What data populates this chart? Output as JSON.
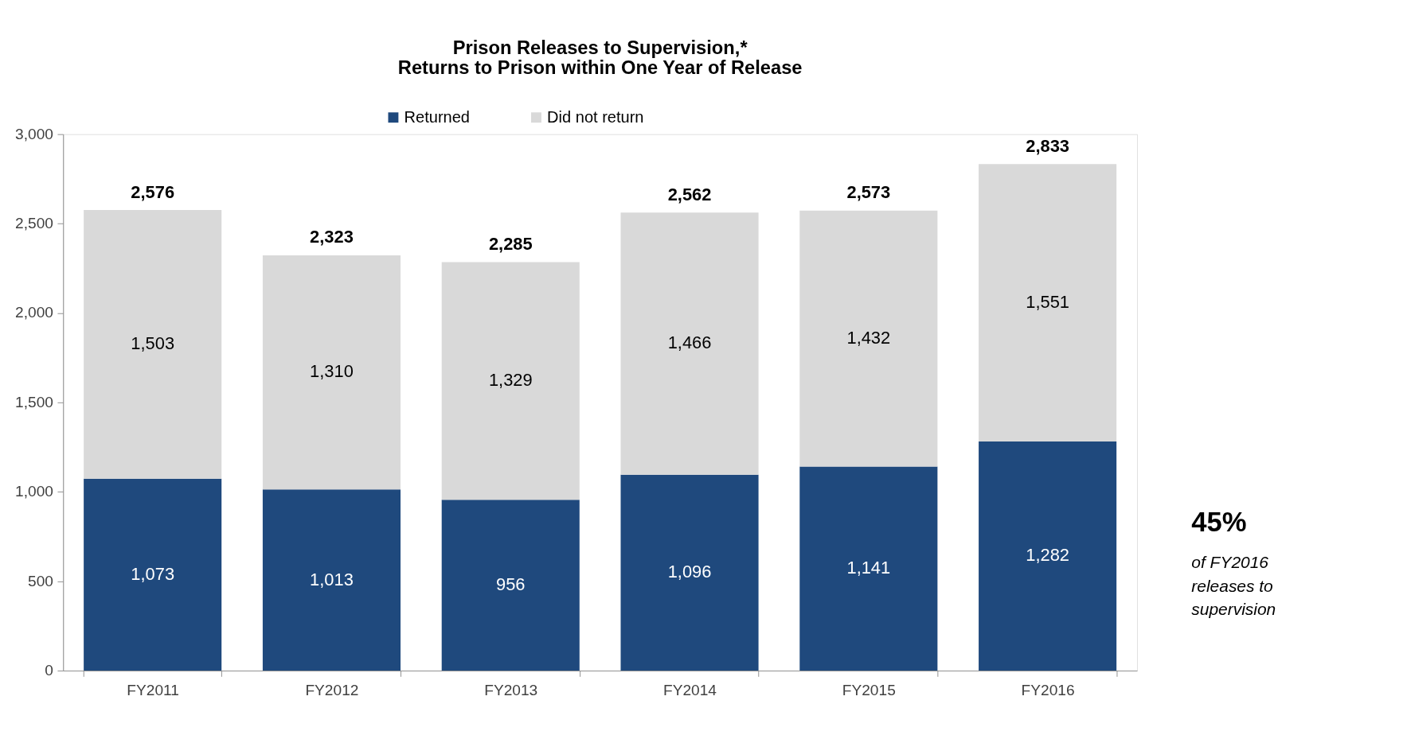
{
  "chart_data": {
    "type": "bar",
    "title": "Prison Releases to Supervision,*\nReturns to Prison within One Year of Release",
    "categories": [
      "FY2011",
      "FY2012",
      "FY2013",
      "FY2014",
      "FY2015",
      "FY2016"
    ],
    "stacked": true,
    "series": [
      {
        "name": "Returned",
        "color": "#1f497d",
        "values": [
          1073,
          1013,
          956,
          1096,
          1141,
          1282
        ],
        "value_labels": [
          "1,073",
          "1,013",
          "956",
          "1,096",
          "1,141",
          "1,282"
        ]
      },
      {
        "name": "Did not return",
        "color": "#d9d9d9",
        "values": [
          1503,
          1310,
          1329,
          1466,
          1432,
          1551
        ],
        "value_labels": [
          "1,503",
          "1,310",
          "1,329",
          "1,466",
          "1,432",
          "1,551"
        ]
      }
    ],
    "totals": [
      "2,576",
      "2,323",
      "2,285",
      "2,562",
      "2,573",
      "2,833"
    ],
    "ylim": [
      0,
      3000
    ],
    "yticks": [
      0,
      {
        "value": 500,
        "label": "500"
      },
      {
        "value": 1000,
        "label": "1,000"
      },
      {
        "value": 1500,
        "label": "1,500"
      },
      {
        "value": 2000,
        "label": "2,000"
      },
      {
        "value": 2500,
        "label": "2,500"
      },
      {
        "value": 3000,
        "label": "3,000"
      }
    ],
    "grid": false,
    "legend": "top",
    "annotations": [
      "45%",
      "of FY2016\nreleases to\nsupervision"
    ]
  }
}
